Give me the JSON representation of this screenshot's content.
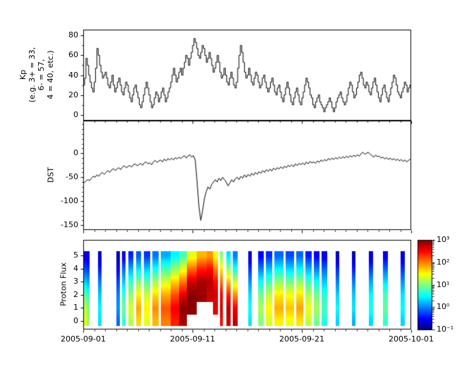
{
  "figure": {
    "background": "#ffffff",
    "axis_color": "#000000",
    "line_color": "#000000"
  },
  "axes": {
    "x": {
      "range_days": [
        0,
        30
      ],
      "tick_positions_days": [
        0,
        10,
        20,
        30
      ],
      "tick_labels": [
        "2005-09-01",
        "2005-09-11",
        "2005-09-21",
        "2005-10-01"
      ],
      "minor_step_days": 1
    }
  },
  "chart_data": [
    {
      "type": "line",
      "subtype": "step-post",
      "name": "kp-index",
      "ylabel": "Kp\n(e.g. 3+ = 33,\n6- = 57,\n4 = 40, etc.)",
      "ylim": [
        -6,
        86
      ],
      "yticks": [
        0,
        20,
        40,
        60,
        80
      ],
      "ytick_labels": [
        "0",
        "20",
        "40",
        "60",
        "80"
      ],
      "y_minor_ticks": [
        10,
        30,
        50,
        70
      ],
      "sample_hours": 3,
      "values": [
        30,
        37,
        57,
        50,
        40,
        33,
        27,
        23,
        33,
        47,
        67,
        60,
        50,
        43,
        37,
        40,
        43,
        37,
        30,
        27,
        33,
        40,
        30,
        23,
        27,
        33,
        37,
        30,
        23,
        20,
        27,
        33,
        30,
        23,
        17,
        13,
        20,
        27,
        30,
        23,
        17,
        10,
        7,
        13,
        20,
        27,
        33,
        27,
        20,
        13,
        7,
        10,
        17,
        23,
        20,
        13,
        17,
        23,
        27,
        20,
        13,
        17,
        23,
        27,
        33,
        40,
        47,
        40,
        33,
        37,
        43,
        47,
        40,
        47,
        53,
        60,
        57,
        50,
        57,
        63,
        70,
        77,
        73,
        67,
        60,
        57,
        63,
        70,
        67,
        60,
        53,
        57,
        63,
        57,
        50,
        43,
        47,
        53,
        60,
        53,
        43,
        37,
        40,
        47,
        40,
        33,
        30,
        37,
        43,
        37,
        30,
        27,
        33,
        47,
        60,
        70,
        63,
        53,
        43,
        37,
        40,
        47,
        40,
        33,
        30,
        37,
        43,
        40,
        33,
        27,
        30,
        37,
        40,
        33,
        27,
        23,
        27,
        33,
        37,
        30,
        23,
        20,
        27,
        30,
        23,
        17,
        13,
        20,
        27,
        33,
        27,
        20,
        13,
        10,
        17,
        23,
        27,
        20,
        13,
        10,
        17,
        23,
        30,
        37,
        33,
        27,
        20,
        17,
        10,
        7,
        13,
        17,
        20,
        13,
        10,
        7,
        3,
        7,
        10,
        13,
        17,
        13,
        7,
        3,
        7,
        13,
        17,
        20,
        23,
        17,
        13,
        10,
        13,
        20,
        27,
        33,
        30,
        23,
        17,
        20,
        27,
        33,
        40,
        43,
        37,
        30,
        27,
        33,
        30,
        23,
        20,
        27,
        33,
        37,
        30,
        23,
        17,
        13,
        20,
        27,
        30,
        23,
        17,
        13,
        20,
        27,
        33,
        40,
        37,
        30,
        23,
        20,
        17,
        23,
        27,
        33,
        30,
        23,
        27,
        30
      ]
    },
    {
      "type": "line",
      "subtype": "plain",
      "name": "dst-index",
      "ylabel": "DST",
      "ylim": [
        -160,
        68
      ],
      "yticks": [
        0,
        -50,
        -100,
        -150
      ],
      "ytick_labels": [
        "0",
        "-50",
        "-100",
        "-150"
      ],
      "y_minor_ticks": [
        -140,
        -130,
        -120,
        -110,
        -90,
        -80,
        -70,
        -60,
        -40,
        -30,
        -20,
        -10,
        10,
        20,
        30,
        40,
        50,
        60
      ],
      "sample_hours": 4,
      "values": [
        -62,
        -58,
        -55,
        -57,
        -52,
        -48,
        -50,
        -45,
        -48,
        -43,
        -40,
        -44,
        -40,
        -36,
        -40,
        -35,
        -32,
        -36,
        -33,
        -30,
        -34,
        -29,
        -26,
        -30,
        -28,
        -25,
        -29,
        -24,
        -22,
        -26,
        -24,
        -21,
        -25,
        -20,
        -18,
        -22,
        -20,
        -24,
        -18,
        -15,
        -19,
        -16,
        -14,
        -18,
        -12,
        -16,
        -11,
        -14,
        -10,
        -14,
        -9,
        -12,
        -8,
        -11,
        -8,
        -5,
        -10,
        -6,
        -3,
        -8,
        -5,
        -15,
        -60,
        -110,
        -140,
        -120,
        -95,
        -80,
        -70,
        -75,
        -65,
        -60,
        -55,
        -60,
        -52,
        -57,
        -50,
        -55,
        -60,
        -68,
        -62,
        -55,
        -60,
        -53,
        -50,
        -55,
        -48,
        -52,
        -45,
        -50,
        -44,
        -48,
        -42,
        -46,
        -40,
        -44,
        -38,
        -42,
        -36,
        -40,
        -34,
        -38,
        -33,
        -37,
        -31,
        -35,
        -30,
        -33,
        -28,
        -32,
        -27,
        -30,
        -25,
        -28,
        -24,
        -28,
        -22,
        -26,
        -21,
        -24,
        -20,
        -24,
        -18,
        -22,
        -17,
        -20,
        -18,
        -21,
        -16,
        -19,
        -14,
        -17,
        -13,
        -16,
        -11,
        -14,
        -10,
        -13,
        -9,
        -12,
        -8,
        -11,
        -7,
        -10,
        -6,
        -9,
        -5,
        -8,
        -4,
        -7,
        -3,
        -6,
        -1,
        2,
        -2,
        0,
        2,
        -2,
        -5,
        -8,
        -4,
        -7,
        -6,
        -10,
        -8,
        -12,
        -9,
        -13,
        -10,
        -14,
        -11,
        -15,
        -12,
        -16,
        -13,
        -17,
        -14,
        -18,
        -15,
        -12
      ]
    },
    {
      "type": "heatmap",
      "name": "proton-flux",
      "ylabel": "Proton Flux",
      "ylim": [
        -0.65,
        6.2
      ],
      "yticks": [
        0,
        1,
        2,
        3,
        4,
        5
      ],
      "ytick_labels": [
        "0",
        "1",
        "2",
        "3",
        "4",
        "5"
      ],
      "scale": "log",
      "vmin": 0.1,
      "vmax": 1000,
      "channel_positions": [
        0,
        1,
        2,
        3,
        4,
        5
      ],
      "channel_draw_span": [
        -0.35,
        5.35
      ],
      "columns": [
        {
          "t0": 0.0,
          "t1": 0.35,
          "v": [
            25,
            18,
            8,
            2,
            0.6,
            0.25
          ]
        },
        {
          "t0": 0.35,
          "t1": 0.6,
          "v": [
            12,
            10,
            5,
            1.5,
            0.5,
            0.2
          ]
        },
        {
          "t0": 1.35,
          "t1": 1.65,
          "v": [
            2.5,
            3,
            2,
            1,
            0.4,
            0.18
          ]
        },
        {
          "t0": 3.0,
          "t1": 3.35,
          "v": [
            0.8,
            1.2,
            1,
            0.6,
            0.3,
            0.15
          ]
        },
        {
          "t0": 3.55,
          "t1": 3.9,
          "v": [
            5,
            8,
            5,
            2,
            0.8,
            0.25
          ]
        },
        {
          "t0": 4.15,
          "t1": 4.6,
          "v": [
            15,
            22,
            12,
            5,
            1.5,
            0.4
          ]
        },
        {
          "t0": 4.85,
          "t1": 5.3,
          "v": [
            45,
            70,
            35,
            10,
            2.5,
            0.7
          ]
        },
        {
          "t0": 5.55,
          "t1": 6.1,
          "v": [
            25,
            35,
            20,
            7,
            2,
            0.5
          ]
        },
        {
          "t0": 6.3,
          "t1": 6.9,
          "v": [
            60,
            90,
            45,
            14,
            3.5,
            0.9
          ]
        },
        {
          "t0": 7.1,
          "t1": 8.0,
          "v": [
            100,
            150,
            70,
            22,
            6,
            1.5
          ]
        },
        {
          "t0": 8.0,
          "t1": 8.8,
          "v": [
            250,
            350,
            160,
            50,
            12,
            3
          ]
        },
        {
          "t0": 8.8,
          "t1": 9.5,
          "v": [
            700,
            900,
            400,
            110,
            25,
            6
          ]
        },
        {
          "t0": 9.5,
          "t1": 10.4,
          "v": [
            null,
            900,
            950,
            500,
            120,
            25
          ]
        },
        {
          "t0": 10.4,
          "t1": 11.3,
          "v": [
            null,
            null,
            800,
            700,
            250,
            60
          ]
        },
        {
          "t0": 11.3,
          "t1": 11.9,
          "v": [
            null,
            null,
            500,
            600,
            300,
            80
          ]
        },
        {
          "t0": 11.9,
          "t1": 12.3,
          "v": [
            null,
            400,
            500,
            300,
            100,
            30
          ]
        },
        {
          "t0": 12.5,
          "t1": 12.8,
          "v": [
            300,
            500,
            350,
            120,
            40,
            10
          ]
        },
        {
          "t0": 13.1,
          "t1": 13.5,
          "v": [
            500,
            600,
            250,
            60,
            12,
            2.5
          ]
        },
        {
          "t0": 13.7,
          "t1": 14.1,
          "v": [
            600,
            350,
            90,
            20,
            4,
            1
          ]
        },
        {
          "t0": 15.1,
          "t1": 15.4,
          "v": [
            2.5,
            3.5,
            2.5,
            1.2,
            0.5,
            0.2
          ]
        },
        {
          "t0": 16.0,
          "t1": 16.5,
          "v": [
            10,
            15,
            9,
            3.5,
            1,
            0.3
          ]
        },
        {
          "t0": 16.7,
          "t1": 17.3,
          "v": [
            22,
            32,
            18,
            6,
            1.8,
            0.45
          ]
        },
        {
          "t0": 17.5,
          "t1": 18.3,
          "v": [
            35,
            65,
            38,
            12,
            3,
            0.8
          ]
        },
        {
          "t0": 18.5,
          "t1": 19.3,
          "v": [
            28,
            55,
            30,
            9,
            2.2,
            0.6
          ]
        },
        {
          "t0": 19.5,
          "t1": 20.1,
          "v": [
            40,
            75,
            40,
            12,
            3,
            0.8
          ]
        },
        {
          "t0": 20.3,
          "t1": 20.9,
          "v": [
            18,
            28,
            16,
            6,
            1.6,
            0.4
          ]
        },
        {
          "t0": 21.1,
          "t1": 21.6,
          "v": [
            9,
            14,
            9,
            3.5,
            1,
            0.3
          ]
        },
        {
          "t0": 21.8,
          "t1": 22.3,
          "v": [
            4,
            6,
            4.5,
            2,
            0.8,
            0.25
          ]
        },
        {
          "t0": 23.1,
          "t1": 23.4,
          "v": [
            2.2,
            3.2,
            2.2,
            1,
            0.45,
            0.18
          ]
        },
        {
          "t0": 24.6,
          "t1": 24.9,
          "v": [
            1.6,
            2.6,
            2,
            1,
            0.4,
            0.16
          ]
        },
        {
          "t0": 26.1,
          "t1": 26.5,
          "v": [
            2.2,
            4,
            3,
            1.5,
            0.55,
            0.2
          ]
        },
        {
          "t0": 27.4,
          "t1": 27.9,
          "v": [
            5,
            8,
            6,
            2.5,
            0.8,
            0.25
          ]
        },
        {
          "t0": 29.0,
          "t1": 29.45,
          "v": [
            2.2,
            3.2,
            2.6,
            1.2,
            0.5,
            0.2
          ]
        }
      ]
    }
  ],
  "colorbar": {
    "scale": "log",
    "min_exponent": -1,
    "max_exponent": 3,
    "tick_labels_top_to_bottom": [
      "10³",
      "10²",
      "10¹",
      "10⁰",
      "10⁻¹"
    ],
    "colormap": "jet"
  }
}
